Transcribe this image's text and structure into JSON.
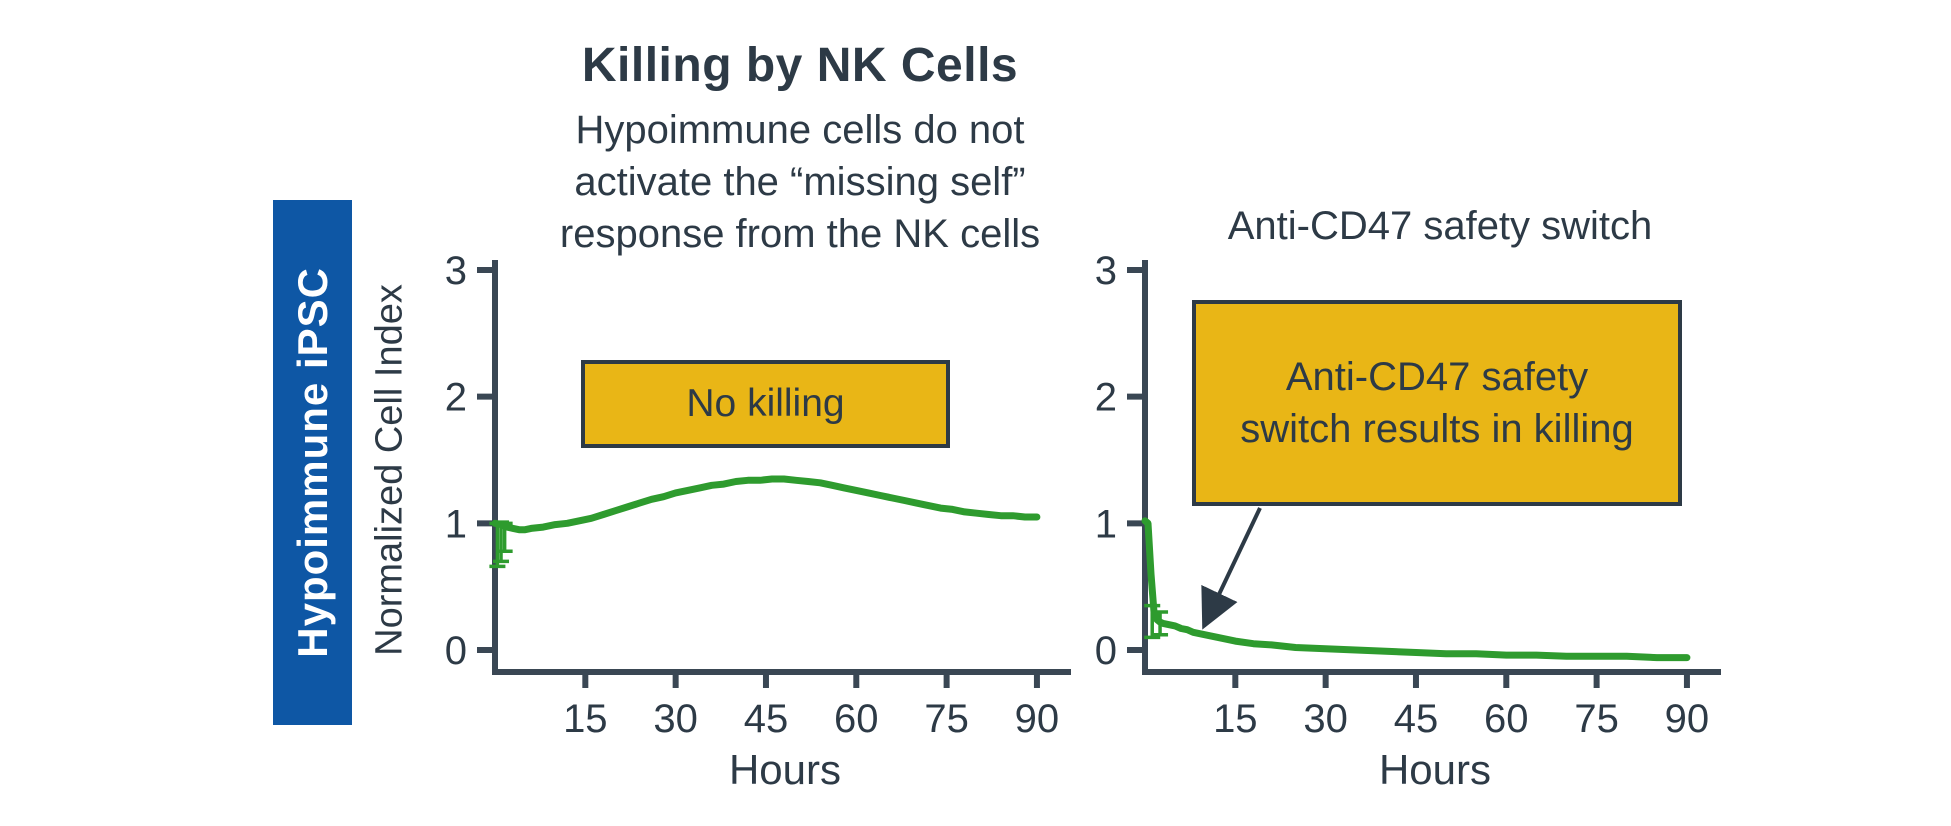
{
  "header": {
    "title": "Killing by NK Cells",
    "subtitle": "Hypoimmune cells do not\nactivate the “missing self”\nresponse from the NK cells"
  },
  "side_banner": {
    "label": "Hypoimmune iPSC"
  },
  "annotations": {
    "left": {
      "text": "No killing"
    },
    "right": {
      "text": "Anti-CD47 safety\nswitch results in killing"
    }
  },
  "colors": {
    "banner_blue": "#0e57a5",
    "line_green": "#2e9b2e",
    "callout_yellow": "#e9b616",
    "ink": "#2d3a46",
    "axis": "#3a4754"
  },
  "chart_data": [
    {
      "type": "line",
      "title": "",
      "xlabel": "Hours",
      "ylabel": "Normalized Cell Index",
      "xlim": [
        0,
        93
      ],
      "ylim": [
        0,
        3
      ],
      "xticks": [
        15,
        30,
        45,
        60,
        75,
        90
      ],
      "yticks": [
        0,
        1,
        2,
        3
      ],
      "grid": false,
      "legend": false,
      "annotation": "No killing",
      "series": [
        {
          "name": "Hypoimmune iPSC",
          "color": "#2e9b2e",
          "x": [
            0,
            1,
            2,
            3,
            4,
            5,
            6,
            8,
            10,
            12,
            14,
            16,
            18,
            20,
            22,
            24,
            26,
            28,
            30,
            32,
            34,
            36,
            38,
            40,
            42,
            44,
            46,
            48,
            50,
            52,
            54,
            56,
            58,
            60,
            62,
            64,
            66,
            68,
            70,
            72,
            74,
            76,
            78,
            80,
            82,
            84,
            86,
            88,
            90
          ],
          "y": [
            1.0,
            0.99,
            0.97,
            0.96,
            0.95,
            0.95,
            0.96,
            0.97,
            0.99,
            1.0,
            1.02,
            1.04,
            1.07,
            1.1,
            1.13,
            1.16,
            1.19,
            1.21,
            1.24,
            1.26,
            1.28,
            1.3,
            1.31,
            1.33,
            1.34,
            1.34,
            1.35,
            1.35,
            1.34,
            1.33,
            1.32,
            1.3,
            1.28,
            1.26,
            1.24,
            1.22,
            1.2,
            1.18,
            1.16,
            1.14,
            1.12,
            1.11,
            1.09,
            1.08,
            1.07,
            1.06,
            1.06,
            1.05,
            1.05
          ]
        }
      ],
      "error_bars": [
        {
          "x": 0.4,
          "low": 0.66,
          "high": 1.0
        },
        {
          "x": 1.0,
          "low": 0.7,
          "high": 1.01
        },
        {
          "x": 1.6,
          "low": 0.78,
          "high": 1.0
        }
      ]
    },
    {
      "type": "line",
      "title": "Anti-CD47 safety switch",
      "xlabel": "Hours",
      "ylabel": "",
      "xlim": [
        0,
        93
      ],
      "ylim": [
        0,
        3
      ],
      "xticks": [
        15,
        30,
        45,
        60,
        75,
        90
      ],
      "yticks": [
        0,
        1,
        2,
        3
      ],
      "grid": false,
      "legend": false,
      "annotation": "Anti-CD47 safety switch results in killing",
      "series": [
        {
          "name": "Anti-CD47 safety switch",
          "color": "#2e9b2e",
          "x": [
            0,
            0.5,
            1,
            1.5,
            2,
            2.5,
            3,
            4,
            5,
            6,
            7,
            8,
            10,
            12,
            15,
            18,
            21,
            25,
            30,
            35,
            40,
            45,
            50,
            55,
            60,
            65,
            70,
            75,
            80,
            85,
            90
          ],
          "y": [
            1.02,
            1.0,
            0.6,
            0.3,
            0.24,
            0.22,
            0.21,
            0.2,
            0.19,
            0.17,
            0.16,
            0.14,
            0.12,
            0.1,
            0.07,
            0.05,
            0.04,
            0.02,
            0.01,
            0.0,
            -0.01,
            -0.02,
            -0.03,
            -0.03,
            -0.04,
            -0.04,
            -0.05,
            -0.05,
            -0.05,
            -0.06,
            -0.06
          ]
        }
      ],
      "error_bars": [
        {
          "x": 1.2,
          "low": 0.1,
          "high": 0.35
        },
        {
          "x": 2.5,
          "low": 0.12,
          "high": 0.3
        }
      ]
    }
  ]
}
